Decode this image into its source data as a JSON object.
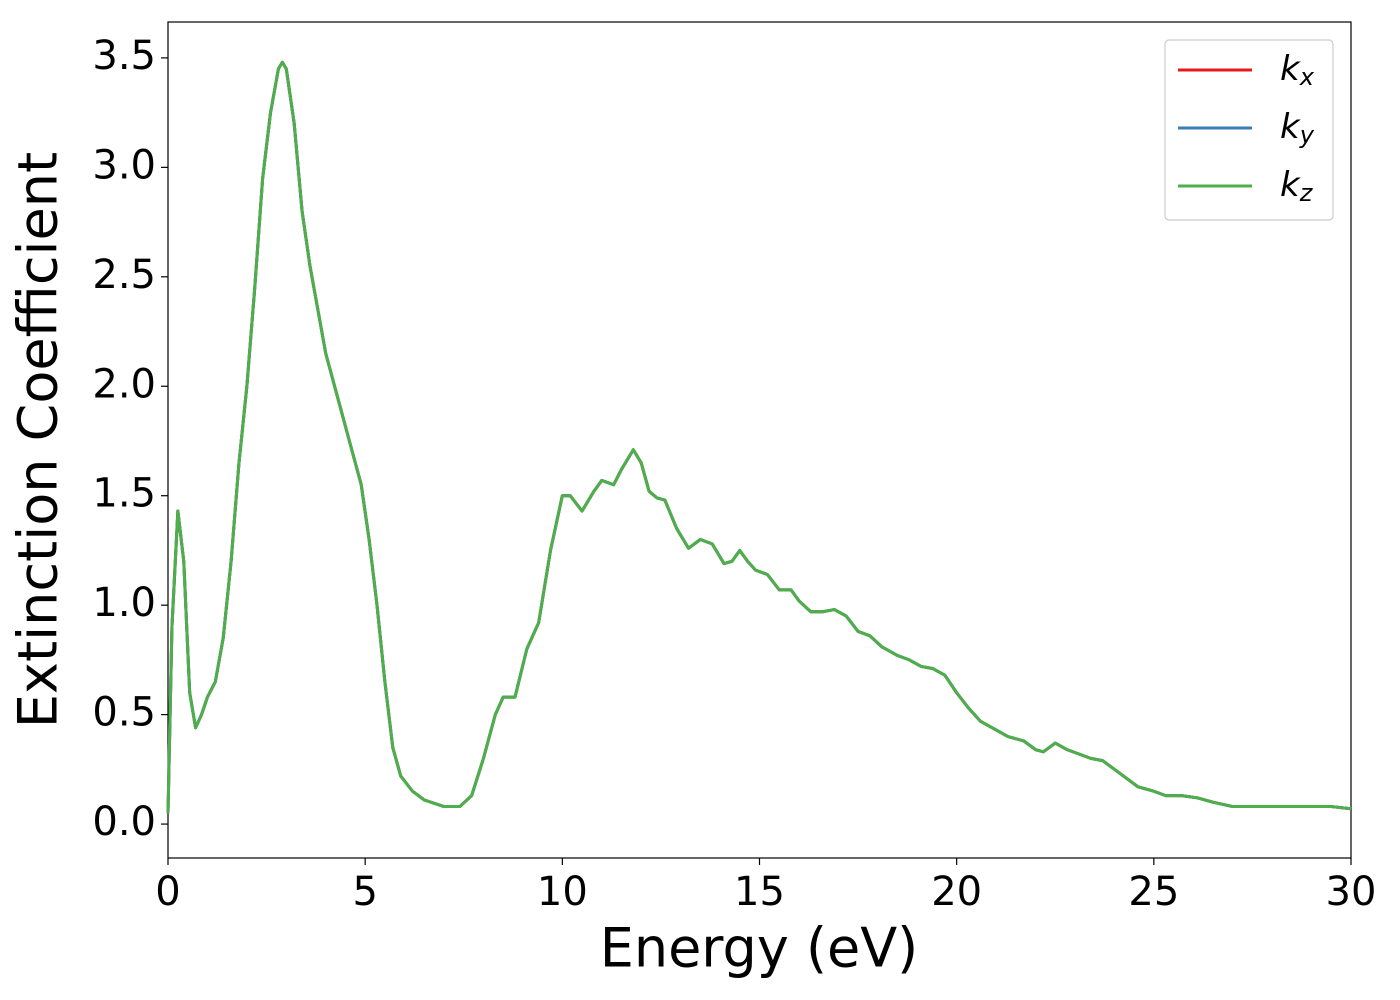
{
  "chart_data": {
    "type": "line",
    "x_label": "Energy (eV)",
    "y_label": "Extinction Coefficient",
    "x": [
      0,
      0.1,
      0.25,
      0.4,
      0.55,
      0.7,
      0.85,
      1.0,
      1.2,
      1.4,
      1.6,
      1.8,
      2.0,
      2.2,
      2.4,
      2.6,
      2.8,
      2.9,
      3.0,
      3.2,
      3.4,
      3.6,
      3.8,
      4.0,
      4.3,
      4.6,
      4.9,
      5.1,
      5.3,
      5.5,
      5.7,
      5.9,
      6.2,
      6.5,
      7.0,
      7.4,
      7.7,
      8.0,
      8.3,
      8.5,
      8.8,
      9.1,
      9.4,
      9.7,
      10.0,
      10.2,
      10.5,
      10.8,
      11.0,
      11.3,
      11.5,
      11.8,
      12.0,
      12.2,
      12.4,
      12.6,
      12.9,
      13.2,
      13.5,
      13.8,
      14.1,
      14.3,
      14.5,
      14.7,
      14.9,
      15.2,
      15.5,
      15.8,
      16.0,
      16.3,
      16.6,
      16.9,
      17.2,
      17.5,
      17.8,
      18.1,
      18.5,
      18.8,
      19.1,
      19.4,
      19.7,
      20.0,
      20.3,
      20.6,
      21.0,
      21.3,
      21.7,
      22.0,
      22.2,
      22.5,
      22.8,
      23.1,
      23.4,
      23.7,
      24.0,
      24.3,
      24.6,
      25.0,
      25.3,
      25.7,
      26.1,
      26.5,
      27.0,
      27.5,
      28.0,
      28.5,
      29.0,
      29.5,
      30.0
    ],
    "series": [
      {
        "name": "kx",
        "color": "#e41a1c",
        "values": [
          0.05,
          0.9,
          1.43,
          1.2,
          0.6,
          0.44,
          0.5,
          0.58,
          0.65,
          0.85,
          1.2,
          1.65,
          2.0,
          2.45,
          2.95,
          3.25,
          3.45,
          3.48,
          3.45,
          3.2,
          2.8,
          2.55,
          2.35,
          2.15,
          1.95,
          1.75,
          1.55,
          1.3,
          1.0,
          0.65,
          0.35,
          0.22,
          0.15,
          0.11,
          0.08,
          0.08,
          0.13,
          0.3,
          0.5,
          0.58,
          0.58,
          0.8,
          0.92,
          1.25,
          1.5,
          1.5,
          1.43,
          1.52,
          1.57,
          1.55,
          1.62,
          1.71,
          1.65,
          1.52,
          1.49,
          1.48,
          1.35,
          1.26,
          1.3,
          1.28,
          1.19,
          1.2,
          1.25,
          1.2,
          1.16,
          1.14,
          1.07,
          1.07,
          1.02,
          0.97,
          0.97,
          0.98,
          0.95,
          0.88,
          0.86,
          0.81,
          0.77,
          0.75,
          0.72,
          0.71,
          0.68,
          0.6,
          0.53,
          0.47,
          0.43,
          0.4,
          0.38,
          0.34,
          0.33,
          0.37,
          0.34,
          0.32,
          0.3,
          0.29,
          0.25,
          0.21,
          0.17,
          0.15,
          0.13,
          0.13,
          0.12,
          0.1,
          0.08,
          0.08,
          0.08,
          0.08,
          0.08,
          0.08,
          0.07
        ]
      },
      {
        "name": "ky",
        "color": "#377eb8",
        "values": [
          0.05,
          0.9,
          1.43,
          1.2,
          0.6,
          0.44,
          0.5,
          0.58,
          0.65,
          0.85,
          1.2,
          1.65,
          2.0,
          2.45,
          2.95,
          3.25,
          3.45,
          3.48,
          3.45,
          3.2,
          2.8,
          2.55,
          2.35,
          2.15,
          1.95,
          1.75,
          1.55,
          1.3,
          1.0,
          0.65,
          0.35,
          0.22,
          0.15,
          0.11,
          0.08,
          0.08,
          0.13,
          0.3,
          0.5,
          0.58,
          0.58,
          0.8,
          0.92,
          1.25,
          1.5,
          1.5,
          1.43,
          1.52,
          1.57,
          1.55,
          1.62,
          1.71,
          1.65,
          1.52,
          1.49,
          1.48,
          1.35,
          1.26,
          1.3,
          1.28,
          1.19,
          1.2,
          1.25,
          1.2,
          1.16,
          1.14,
          1.07,
          1.07,
          1.02,
          0.97,
          0.97,
          0.98,
          0.95,
          0.88,
          0.86,
          0.81,
          0.77,
          0.75,
          0.72,
          0.71,
          0.68,
          0.6,
          0.53,
          0.47,
          0.43,
          0.4,
          0.38,
          0.34,
          0.33,
          0.37,
          0.34,
          0.32,
          0.3,
          0.29,
          0.25,
          0.21,
          0.17,
          0.15,
          0.13,
          0.13,
          0.12,
          0.1,
          0.08,
          0.08,
          0.08,
          0.08,
          0.08,
          0.08,
          0.07
        ]
      },
      {
        "name": "kz",
        "color": "#4daf4a",
        "values": [
          0.05,
          0.9,
          1.43,
          1.2,
          0.6,
          0.44,
          0.5,
          0.58,
          0.65,
          0.85,
          1.2,
          1.65,
          2.0,
          2.45,
          2.95,
          3.25,
          3.45,
          3.48,
          3.45,
          3.2,
          2.8,
          2.55,
          2.35,
          2.15,
          1.95,
          1.75,
          1.55,
          1.3,
          1.0,
          0.65,
          0.35,
          0.22,
          0.15,
          0.11,
          0.08,
          0.08,
          0.13,
          0.3,
          0.5,
          0.58,
          0.58,
          0.8,
          0.92,
          1.25,
          1.5,
          1.5,
          1.43,
          1.52,
          1.57,
          1.55,
          1.62,
          1.71,
          1.65,
          1.52,
          1.49,
          1.48,
          1.35,
          1.26,
          1.3,
          1.28,
          1.19,
          1.2,
          1.25,
          1.2,
          1.16,
          1.14,
          1.07,
          1.07,
          1.02,
          0.97,
          0.97,
          0.98,
          0.95,
          0.88,
          0.86,
          0.81,
          0.77,
          0.75,
          0.72,
          0.71,
          0.68,
          0.6,
          0.53,
          0.47,
          0.43,
          0.4,
          0.38,
          0.34,
          0.33,
          0.37,
          0.34,
          0.32,
          0.3,
          0.29,
          0.25,
          0.21,
          0.17,
          0.15,
          0.13,
          0.13,
          0.12,
          0.1,
          0.08,
          0.08,
          0.08,
          0.08,
          0.08,
          0.08,
          0.07
        ]
      }
    ],
    "xlim": [
      0,
      30
    ],
    "xticks": [
      0,
      5,
      10,
      15,
      20,
      25,
      30
    ],
    "ylim": [
      -0.155,
      3.664
    ],
    "yticks": [
      {
        "value": 0,
        "label": "0.0"
      },
      0.5,
      {
        "value": 1,
        "label": "1.0"
      },
      1.5,
      {
        "value": 2,
        "label": "2.0"
      },
      2.5,
      {
        "value": 3,
        "label": "3.0"
      },
      3.5
    ],
    "grid": false,
    "legend": "upper right"
  }
}
